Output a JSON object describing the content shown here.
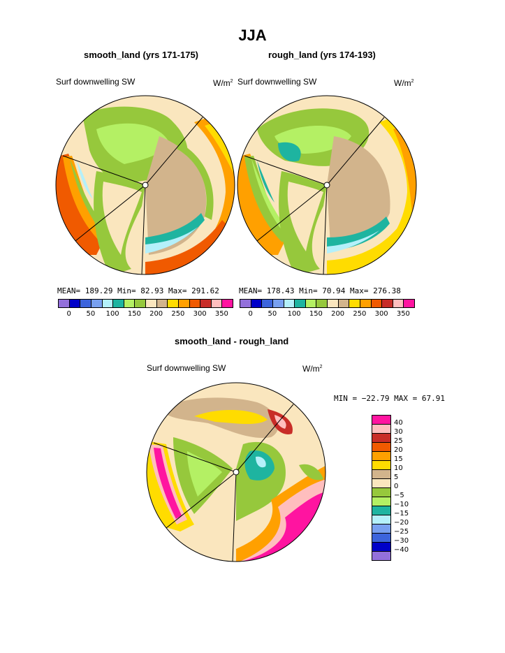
{
  "page_title": "JJA",
  "panels": [
    {
      "subtitle": "smooth_land (yrs 171-175)",
      "field_label": "Surf downwelling SW",
      "units": "W/m",
      "units_sup": "2",
      "stats": {
        "mean_label": "MEAN=",
        "mean": "189.29",
        "min_label": "Min=",
        "min": "82.93",
        "max_label": "Max=",
        "max": "291.62"
      }
    },
    {
      "subtitle": "rough_land (yrs 174-193)",
      "field_label": "Surf downwelling SW",
      "units": "W/m",
      "units_sup": "2",
      "stats": {
        "mean_label": "MEAN=",
        "mean": "178.43",
        "min_label": "Min=",
        "min": "70.94",
        "max_label": "Max=",
        "max": "276.38"
      }
    }
  ],
  "abs_colorbar": {
    "colors": [
      "#9370db",
      "#0000c8",
      "#3c64dc",
      "#78a0f0",
      "#b4f0fa",
      "#1eb4a0",
      "#b4f064",
      "#96c83c",
      "#fae6be",
      "#d2b48c",
      "#ffdc00",
      "#ffa000",
      "#f05a00",
      "#c82d28",
      "#ffbebe",
      "#ff14a0"
    ],
    "labels": [
      "0",
      "50",
      "100",
      "150",
      "200",
      "250",
      "300",
      "350"
    ]
  },
  "diff": {
    "subtitle": "smooth_land - rough_land",
    "field_label": "Surf downwelling SW",
    "units": "W/m",
    "units_sup": "2",
    "minmax": "MIN = −22.79  MAX =   67.91",
    "colorbar": {
      "colors": [
        "#ff14a0",
        "#ffbebe",
        "#c82d28",
        "#f05a00",
        "#ffa000",
        "#ffdc00",
        "#d2b48c",
        "#fae6be",
        "#96c83c",
        "#b4f064",
        "#1eb4a0",
        "#b4f0fa",
        "#78a0f0",
        "#3c64dc",
        "#0000c8",
        "#9370db"
      ],
      "labels": [
        "40",
        "30",
        "25",
        "20",
        "15",
        "10",
        "5",
        "0",
        "−5",
        "−10",
        "−15",
        "−20",
        "−25",
        "−30",
        "−40"
      ]
    }
  },
  "chart_data": [
    {
      "type": "heatmap",
      "title": "smooth_land (yrs 171-175)",
      "field": "Surf downwelling SW",
      "units": "W/m2",
      "mean": 189.29,
      "min": 82.93,
      "max": 291.62,
      "levels": [
        0,
        25,
        50,
        75,
        100,
        125,
        150,
        175,
        200,
        225,
        250,
        275,
        300,
        325,
        350
      ]
    },
    {
      "type": "heatmap",
      "title": "rough_land (yrs 174-193)",
      "field": "Surf downwelling SW",
      "units": "W/m2",
      "mean": 178.43,
      "min": 70.94,
      "max": 276.38,
      "levels": [
        0,
        25,
        50,
        75,
        100,
        125,
        150,
        175,
        200,
        225,
        250,
        275,
        300,
        325,
        350
      ]
    },
    {
      "type": "heatmap",
      "title": "smooth_land - rough_land",
      "field": "Surf downwelling SW",
      "units": "W/m2",
      "min": -22.79,
      "max": 67.91,
      "levels": [
        -40,
        -30,
        -25,
        -20,
        -15,
        -10,
        -5,
        0,
        5,
        10,
        15,
        20,
        25,
        30,
        40
      ]
    }
  ]
}
